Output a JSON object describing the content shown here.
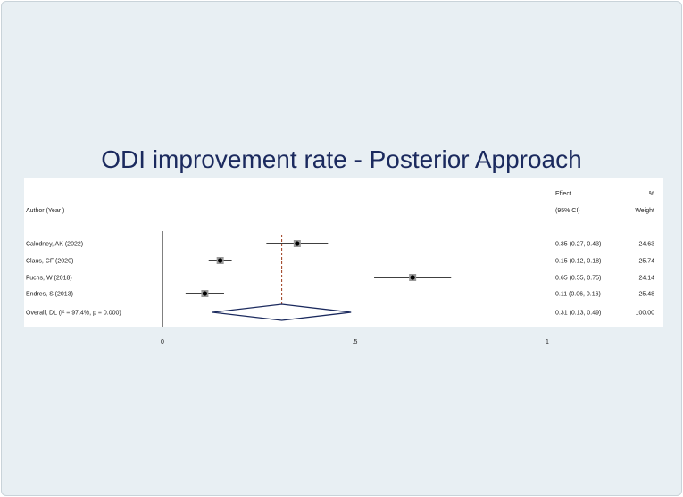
{
  "title": "ODI improvement rate - Posterior Approach",
  "headers": {
    "author": "Author (Year )",
    "effect_top": "Effect",
    "effect_bottom": "(95% CI)",
    "weight_top": "%",
    "weight_bottom": "Weight"
  },
  "colors": {
    "title": "#1b2a5e",
    "pooled_line": "#9b3a1a",
    "diamond": "#1b2a5e",
    "background": "#e8eff3"
  },
  "chart_data": {
    "type": "forest",
    "xlim": [
      0,
      1
    ],
    "ticks": [
      {
        "value": 0,
        "label": "0"
      },
      {
        "value": 0.5,
        "label": ".5"
      },
      {
        "value": 1,
        "label": "1"
      }
    ],
    "studies": [
      {
        "label": "Calodney, AK (2022)",
        "effect": 0.35,
        "lower": 0.27,
        "upper": 0.43,
        "ci_text": "0.35 (0.27, 0.43)",
        "weight": "24.63"
      },
      {
        "label": "Claus, CF (2020)",
        "effect": 0.15,
        "lower": 0.12,
        "upper": 0.18,
        "ci_text": "0.15 (0.12, 0.18)",
        "weight": "25.74"
      },
      {
        "label": "Fuchs, W (2018)",
        "effect": 0.65,
        "lower": 0.55,
        "upper": 0.75,
        "ci_text": "0.65 (0.55, 0.75)",
        "weight": "24.14"
      },
      {
        "label": "Endres, S (2013)",
        "effect": 0.11,
        "lower": 0.06,
        "upper": 0.16,
        "ci_text": "0.11 (0.06, 0.16)",
        "weight": "25.48"
      }
    ],
    "overall": {
      "label": "Overall, DL (I² = 97.4%, p = 0.000)",
      "effect": 0.31,
      "lower": 0.13,
      "upper": 0.49,
      "ci_text": "0.31 (0.13, 0.49)",
      "weight": "100.00"
    }
  }
}
